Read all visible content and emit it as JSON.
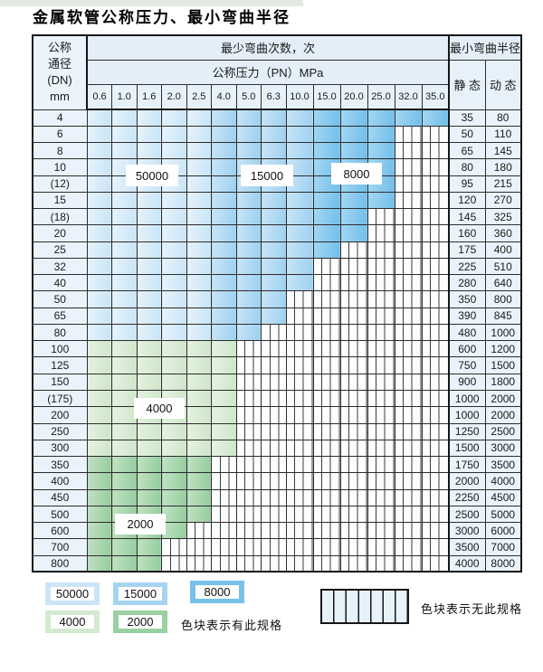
{
  "title": "金属软管公称压力、最小弯曲半径",
  "colors": {
    "cycles_50000": "#cbe5f7",
    "cycles_15000": "#a6d4f0",
    "cycles_8000": "#77c1ea",
    "cycles_4000": "#d4e9d1",
    "cycles_2000": "#9bd1a2",
    "header_bg": "#e3eef8",
    "value_cell_bg": "#eaf3fb",
    "no_spec_bg": "#fbfdff"
  },
  "table": {
    "dn_header_lines": [
      "公称",
      "通径",
      "(DN)",
      "mm"
    ],
    "bend_cycles_header": "最少弯曲次数，次",
    "pressure_header": "公称压力（PN）MPa",
    "min_radius_header": "最小弯曲半径",
    "static_header": "静 态",
    "dynamic_header": "动 态",
    "pressure_cols": [
      "0.6",
      "1.0",
      "1.6",
      "2.0",
      "2.5",
      "4.0",
      "5.0",
      "6.3",
      "10.0",
      "15.0",
      "20.0",
      "25.0",
      "32.0",
      "35.0"
    ],
    "rows": [
      {
        "dn": "4",
        "colored": 14,
        "zone": "blue",
        "static": "35",
        "dynamic": "80"
      },
      {
        "dn": "6",
        "colored": 12,
        "zone": "blue",
        "static": "50",
        "dynamic": "110"
      },
      {
        "dn": "8",
        "colored": 12,
        "zone": "blue",
        "static": "65",
        "dynamic": "145"
      },
      {
        "dn": "10",
        "colored": 12,
        "zone": "blue",
        "static": "80",
        "dynamic": "180"
      },
      {
        "dn": "(12)",
        "colored": 12,
        "zone": "blue",
        "static": "95",
        "dynamic": "215"
      },
      {
        "dn": "15",
        "colored": 12,
        "zone": "blue",
        "static": "120",
        "dynamic": "270"
      },
      {
        "dn": "(18)",
        "colored": 11,
        "zone": "blue",
        "static": "145",
        "dynamic": "325"
      },
      {
        "dn": "20",
        "colored": 11,
        "zone": "blue",
        "static": "160",
        "dynamic": "360"
      },
      {
        "dn": "25",
        "colored": 10,
        "zone": "blue",
        "static": "175",
        "dynamic": "400"
      },
      {
        "dn": "32",
        "colored": 9,
        "zone": "blue",
        "static": "225",
        "dynamic": "510"
      },
      {
        "dn": "40",
        "colored": 9,
        "zone": "blue",
        "static": "280",
        "dynamic": "640"
      },
      {
        "dn": "50",
        "colored": 8,
        "zone": "blue",
        "static": "350",
        "dynamic": "800"
      },
      {
        "dn": "65",
        "colored": 8,
        "zone": "blue",
        "static": "390",
        "dynamic": "845"
      },
      {
        "dn": "80",
        "colored": 7,
        "zone": "blue",
        "static": "480",
        "dynamic": "1000"
      },
      {
        "dn": "100",
        "colored": 6,
        "zone": "g1",
        "static": "600",
        "dynamic": "1200"
      },
      {
        "dn": "125",
        "colored": 6,
        "zone": "g1",
        "static": "750",
        "dynamic": "1500"
      },
      {
        "dn": "150",
        "colored": 6,
        "zone": "g1",
        "static": "900",
        "dynamic": "1800"
      },
      {
        "dn": "(175)",
        "colored": 6,
        "zone": "g1",
        "static": "1000",
        "dynamic": "2000"
      },
      {
        "dn": "200",
        "colored": 6,
        "zone": "g1",
        "static": "1000",
        "dynamic": "2000"
      },
      {
        "dn": "250",
        "colored": 6,
        "zone": "g1",
        "static": "1250",
        "dynamic": "2500"
      },
      {
        "dn": "300",
        "colored": 6,
        "zone": "g1",
        "static": "1500",
        "dynamic": "3000"
      },
      {
        "dn": "350",
        "colored": 5,
        "zone": "g2",
        "static": "1750",
        "dynamic": "3500"
      },
      {
        "dn": "400",
        "colored": 5,
        "zone": "g2",
        "static": "2000",
        "dynamic": "4000"
      },
      {
        "dn": "450",
        "colored": 5,
        "zone": "g2",
        "static": "2250",
        "dynamic": "4500"
      },
      {
        "dn": "500",
        "colored": 5,
        "zone": "g2",
        "static": "2500",
        "dynamic": "5000"
      },
      {
        "dn": "600",
        "colored": 4,
        "zone": "g2",
        "static": "3000",
        "dynamic": "6000"
      },
      {
        "dn": "700",
        "colored": 3,
        "zone": "g2",
        "static": "3500",
        "dynamic": "7000"
      },
      {
        "dn": "800",
        "colored": 3,
        "zone": "g2",
        "static": "4000",
        "dynamic": "8000"
      }
    ]
  },
  "overlay_labels": [
    {
      "text": "50000"
    },
    {
      "text": "15000"
    },
    {
      "text": "8000"
    },
    {
      "text": "4000"
    },
    {
      "text": "2000"
    }
  ],
  "legend": {
    "items": [
      {
        "label": "50000",
        "color": "#cbe5f7"
      },
      {
        "label": "15000",
        "color": "#a6d4f0"
      },
      {
        "label": "8000",
        "color": "#77c1ea"
      },
      {
        "label": "4000",
        "color": "#d4e9d1"
      },
      {
        "label": "2000",
        "color": "#9bd1a2"
      }
    ],
    "has_spec_note": "色块表示有此规格",
    "no_spec_note": "色块表示无此规格"
  }
}
